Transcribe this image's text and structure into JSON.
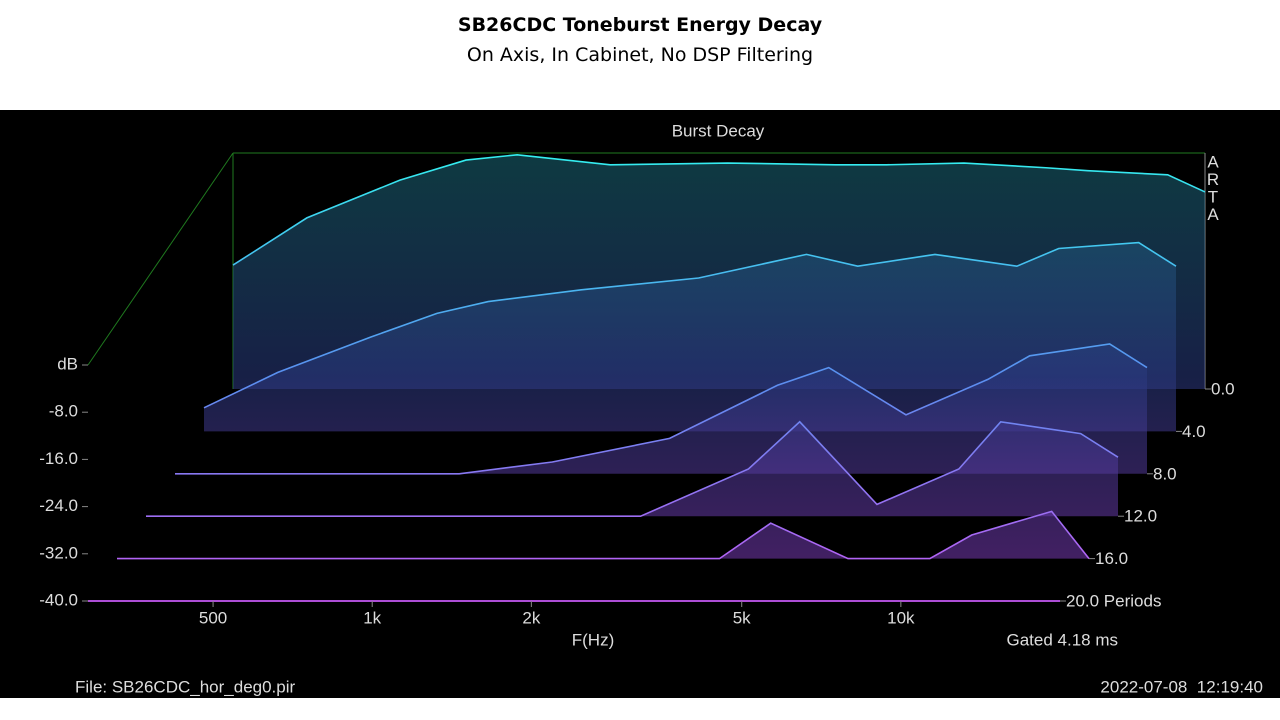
{
  "chart_data": {
    "type": "waterfall",
    "title": "SB26CDC Toneburst Energy Decay",
    "subtitle": "On Axis, In Cabinet, No DSP Filtering",
    "panel_title": "Burst Decay",
    "watermark": [
      "A",
      "R",
      "T",
      "A"
    ],
    "x_label": "F(Hz)",
    "gate_label": "Gated 4.18 ms",
    "file_label": "File: SB26CDC_hor_deg0.pir",
    "timestamp": "2022-07-08  12:19:40",
    "log_x": true,
    "xlim": [
      290,
      20000
    ],
    "xticks": [
      500,
      {
        "value": 1000,
        "label": "1k"
      },
      {
        "value": 2000,
        "label": "2k"
      },
      {
        "value": 5000,
        "label": "5k"
      },
      {
        "value": 10000,
        "label": "10k"
      }
    ],
    "ylim": [
      -40,
      0
    ],
    "yticks": [
      {
        "value": 0,
        "label": "dB"
      },
      {
        "value": -8,
        "label": "-8.0"
      },
      {
        "value": -16,
        "label": "-16.0"
      },
      {
        "value": -24,
        "label": "-24.0"
      },
      {
        "value": -32,
        "label": "-32.0"
      },
      {
        "value": -40,
        "label": "-40.0"
      }
    ],
    "zlim": [
      0,
      20
    ],
    "zticks": [
      {
        "value": 0,
        "label": "0.0"
      },
      {
        "value": 4,
        "label": "4.0"
      },
      {
        "value": 8,
        "label": "8.0"
      },
      {
        "value": 12,
        "label": "12.0"
      },
      {
        "value": 16,
        "label": "16.0"
      },
      {
        "value": 20,
        "label": "20.0 Periods"
      }
    ],
    "x": [
      290,
      400,
      600,
      800,
      1000,
      1500,
      2500,
      4000,
      5000,
      7000,
      10000,
      12000,
      17000,
      20000
    ],
    "series": [
      {
        "period": 0,
        "values": [
          -19,
          -11,
          -4.6,
          -1.2,
          -0.3,
          -2,
          -1.7,
          -2,
          -2,
          -1.7,
          -2.5,
          -3,
          -3.7,
          -6.6
        ]
      },
      {
        "period": 4,
        "values": [
          -36,
          -30,
          -24,
          -20,
          -18,
          -16,
          -14,
          -10,
          -12,
          -10,
          -12,
          -9,
          -8,
          -12
        ]
      },
      {
        "period": 8,
        "values": [
          -40,
          -40,
          -40,
          -40,
          -40,
          -38,
          -34,
          -25,
          -22,
          -30,
          -24,
          -20,
          -18,
          -22
        ]
      },
      {
        "period": 12,
        "values": [
          -40,
          -40,
          -40,
          -40,
          -40,
          -40,
          -40,
          -32,
          -24,
          -38,
          -32,
          -24,
          -26,
          -30
        ]
      },
      {
        "period": 16,
        "values": [
          -40,
          -40,
          -40,
          -40,
          -40,
          -40,
          -40,
          -40,
          -34,
          -40,
          -40,
          -36,
          -32,
          -40
        ]
      },
      {
        "period": 20,
        "values": [
          -40,
          -40,
          -40,
          -40,
          -40,
          -40,
          -40,
          -40,
          -40,
          -40,
          -40,
          -40,
          -40,
          -40
        ]
      }
    ]
  }
}
